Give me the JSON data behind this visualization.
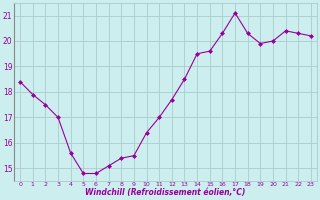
{
  "x": [
    0,
    1,
    2,
    3,
    4,
    5,
    6,
    7,
    8,
    9,
    10,
    11,
    12,
    13,
    14,
    15,
    16,
    17,
    18,
    19,
    20,
    21,
    22,
    23
  ],
  "y": [
    18.4,
    17.9,
    17.5,
    17.0,
    15.6,
    14.8,
    14.8,
    15.1,
    15.4,
    15.5,
    16.4,
    17.0,
    17.7,
    18.5,
    19.5,
    19.6,
    20.3,
    21.1,
    20.3,
    19.9,
    20.0,
    20.4,
    20.3,
    20.2
  ],
  "line_color": "#990099",
  "marker": "D",
  "marker_size": 2,
  "bg_color": "#cceeee",
  "grid_color": "#aacccc",
  "xlabel": "Windchill (Refroidissement éolien,°C)",
  "xlabel_color": "#990099",
  "tick_color": "#990099",
  "ylim": [
    14.5,
    21.5
  ],
  "xlim": [
    -0.5,
    23.5
  ],
  "yticks": [
    15,
    16,
    17,
    18,
    19,
    20,
    21
  ],
  "xtick_labels": [
    "0",
    "1",
    "2",
    "3",
    "4",
    "5",
    "6",
    "7",
    "8",
    "9",
    "10",
    "11",
    "12",
    "13",
    "14",
    "15",
    "16",
    "17",
    "18",
    "19",
    "20",
    "21",
    "22",
    "23"
  ]
}
